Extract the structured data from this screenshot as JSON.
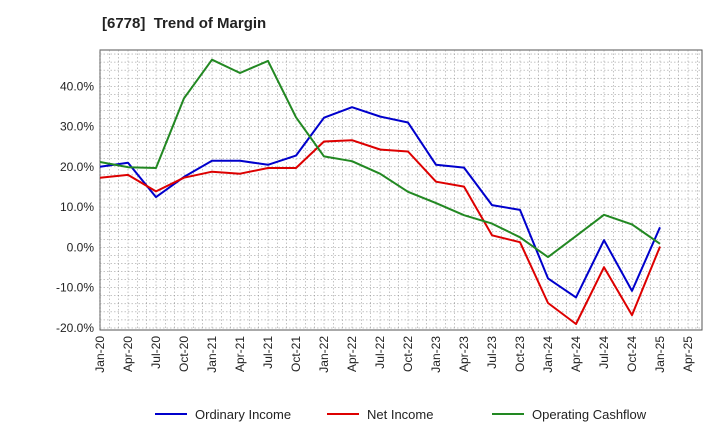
{
  "chart_data": {
    "type": "line",
    "title": "[6778]  Trend of Margin",
    "xlabel": "",
    "ylabel": "",
    "x_ticks": [
      "Jan-20",
      "Apr-20",
      "Jul-20",
      "Oct-20",
      "Jan-21",
      "Apr-21",
      "Jul-21",
      "Oct-21",
      "Jan-22",
      "Apr-22",
      "Jul-22",
      "Oct-22",
      "Jan-23",
      "Apr-23",
      "Jul-23",
      "Oct-23",
      "Jan-24",
      "Apr-24",
      "Jul-24",
      "Oct-24",
      "Jan-25",
      "Apr-25"
    ],
    "y_ticks": [
      "-20.0%",
      "-10.0%",
      "0.0%",
      "10.0%",
      "20.0%",
      "30.0%",
      "40.0%"
    ],
    "ylim": [
      -20.5,
      49.0
    ],
    "grid": true,
    "legend_position": "bottom",
    "categories": [
      "Jan-20",
      "Apr-20",
      "Jul-20",
      "Oct-20",
      "Jan-21",
      "Apr-21",
      "Jul-21",
      "Oct-21",
      "Jan-22",
      "Apr-22",
      "Jul-22",
      "Oct-22",
      "Jan-23",
      "Apr-23",
      "Jul-23",
      "Oct-23",
      "Jan-24",
      "Apr-24",
      "Jul-24",
      "Oct-24",
      "Jan-25"
    ],
    "series": [
      {
        "name": "Ordinary Income",
        "color": "#0000cc",
        "values": [
          20.0,
          21.0,
          12.5,
          17.5,
          21.5,
          21.5,
          20.5,
          22.8,
          32.2,
          34.8,
          32.5,
          31.0,
          20.5,
          19.8,
          10.5,
          9.3,
          -7.7,
          -12.4,
          1.8,
          -10.8,
          5.0
        ]
      },
      {
        "name": "Net Income",
        "color": "#dd0000",
        "values": [
          17.3,
          18.0,
          13.9,
          17.3,
          18.8,
          18.3,
          19.7,
          19.7,
          26.3,
          26.6,
          24.3,
          23.8,
          16.3,
          15.1,
          3.0,
          1.3,
          -13.8,
          -19.0,
          -4.9,
          -16.8,
          0.2
        ]
      },
      {
        "name": "Operating Cashflow",
        "color": "#228822",
        "values": [
          21.2,
          19.9,
          19.7,
          37.0,
          46.6,
          43.3,
          46.3,
          32.3,
          22.6,
          21.4,
          18.3,
          13.8,
          11.0,
          8.0,
          5.9,
          2.5,
          -2.4,
          2.8,
          8.1,
          5.7,
          0.9
        ]
      }
    ]
  }
}
